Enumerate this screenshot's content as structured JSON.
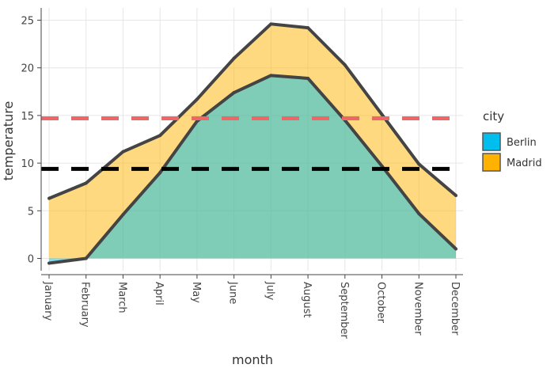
{
  "chart_data": {
    "type": "area",
    "xlabel": "month",
    "ylabel": "temperature",
    "ylim": [
      -1.5,
      26
    ],
    "yticks": [
      0,
      5,
      10,
      15,
      20,
      25
    ],
    "grid": true,
    "legend": {
      "title": "city",
      "position": "right"
    },
    "categories": [
      "January",
      "February",
      "March",
      "April",
      "May",
      "June",
      "July",
      "August",
      "September",
      "October",
      "November",
      "December"
    ],
    "series": [
      {
        "name": "Berlin",
        "color": "#00BFEF",
        "values": [
          -0.5,
          0.0,
          4.6,
          9.0,
          14.4,
          17.4,
          19.2,
          18.9,
          14.5,
          9.7,
          4.7,
          1.0
        ]
      },
      {
        "name": "Madrid",
        "color": "#FFB300",
        "values": [
          6.3,
          7.9,
          11.2,
          12.9,
          16.7,
          21.0,
          24.6,
          24.2,
          20.3,
          15.1,
          9.9,
          6.6
        ]
      }
    ],
    "reference_lines": [
      {
        "value": 14.7,
        "color": "#EE6666"
      },
      {
        "value": 9.4,
        "color": "#000000"
      }
    ]
  }
}
